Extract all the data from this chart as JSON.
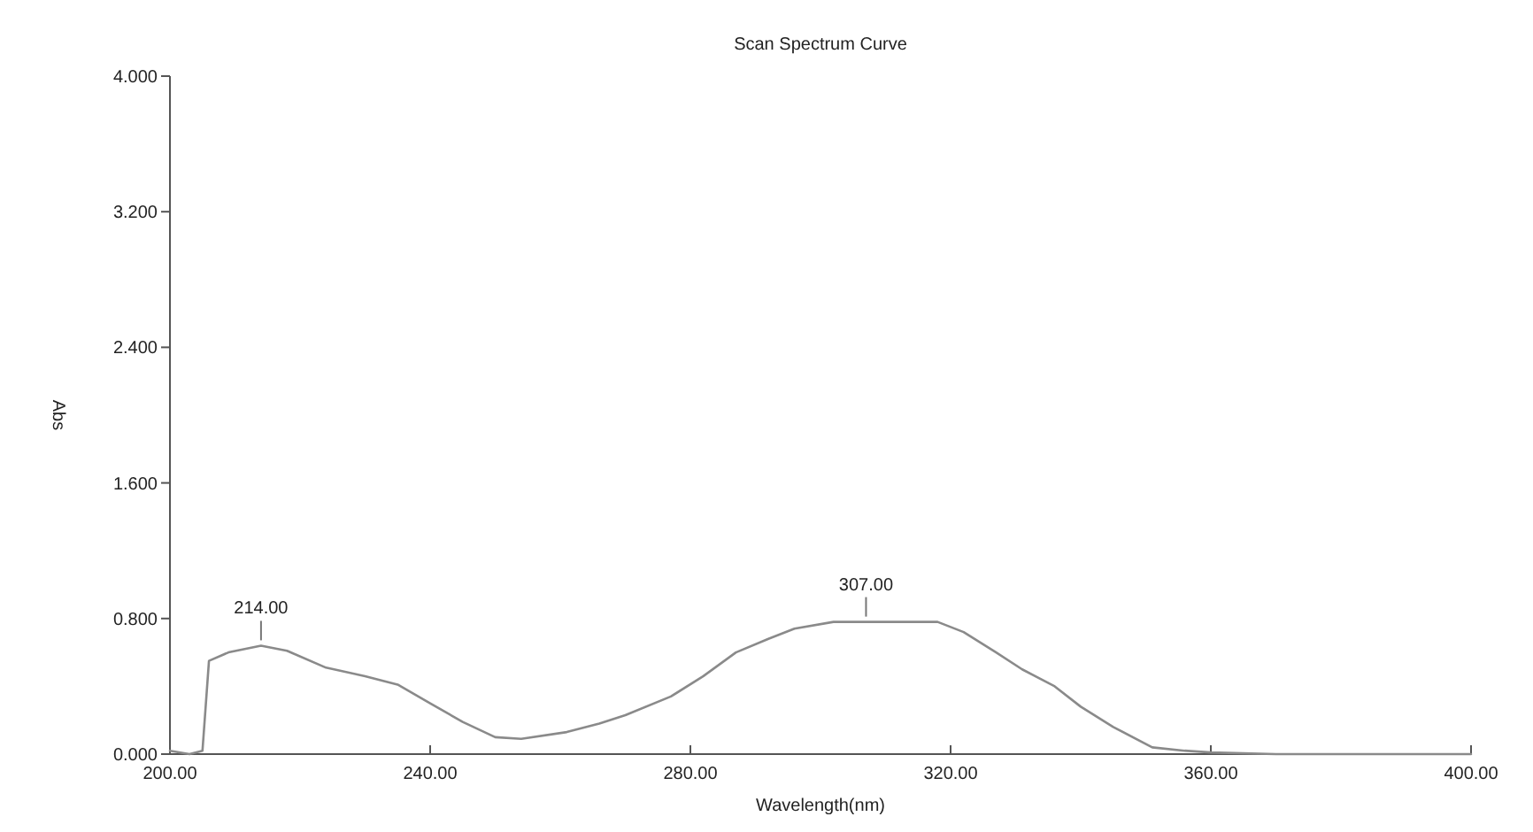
{
  "chart_data": {
    "type": "line",
    "title": "Scan Spectrum Curve",
    "xlabel": "Wavelength(nm)",
    "ylabel": "Abs",
    "xlim": [
      200,
      400
    ],
    "ylim": [
      0,
      4
    ],
    "xticks": [
      {
        "value": 200,
        "label": "200.00"
      },
      {
        "value": 240,
        "label": "240.00"
      },
      {
        "value": 280,
        "label": "280.00"
      },
      {
        "value": 320,
        "label": "320.00"
      },
      {
        "value": 360,
        "label": "360.00"
      },
      {
        "value": 400,
        "label": "400.00"
      }
    ],
    "yticks": [
      {
        "value": 0,
        "label": "0.000"
      },
      {
        "value": 0.8,
        "label": "0.800"
      },
      {
        "value": 1.6,
        "label": "1.600"
      },
      {
        "value": 2.4,
        "label": "2.400"
      },
      {
        "value": 3.2,
        "label": "3.200"
      },
      {
        "value": 4,
        "label": "4.000"
      }
    ],
    "marker": "none",
    "line_style": "solid",
    "series": [
      {
        "color": "#8a8a8a",
        "x": [
          200,
          203,
          205,
          206,
          209,
          214,
          218,
          224,
          230,
          235,
          240,
          245,
          250,
          254,
          261,
          266,
          270,
          277,
          282,
          287,
          292,
          296,
          302,
          307,
          312,
          318,
          322,
          327,
          331,
          336,
          340,
          345,
          351,
          356,
          360,
          370,
          380,
          390,
          400
        ],
        "values": [
          0.02,
          0.0,
          0.02,
          0.55,
          0.6,
          0.64,
          0.61,
          0.51,
          0.46,
          0.41,
          0.3,
          0.19,
          0.1,
          0.09,
          0.13,
          0.18,
          0.23,
          0.34,
          0.46,
          0.6,
          0.68,
          0.74,
          0.78,
          0.78,
          0.78,
          0.78,
          0.72,
          0.6,
          0.5,
          0.4,
          0.28,
          0.16,
          0.04,
          0.02,
          0.01,
          0.0,
          0.0,
          0.0,
          0.0
        ]
      }
    ],
    "annotations": [
      {
        "text": "214.00",
        "x": 214,
        "y": 0.64
      },
      {
        "text": "307.00",
        "x": 307,
        "y": 0.78
      }
    ]
  }
}
